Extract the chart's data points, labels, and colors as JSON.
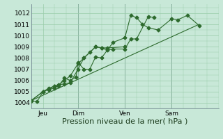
{
  "background_color": "#c8e8d8",
  "grid_color": "#99ccaa",
  "line_color": "#2d6a2d",
  "marker": "D",
  "marker_size": 2.5,
  "ylabel_ticks": [
    1004,
    1005,
    1006,
    1007,
    1008,
    1009,
    1010,
    1011,
    1012
  ],
  "xlim": [
    0,
    96
  ],
  "ylim": [
    1003.5,
    1012.8
  ],
  "xlabel": "Pression niveau de la mer( hPa )",
  "xlabel_fontsize": 8,
  "tick_fontsize": 6.5,
  "vline_color": "#667788",
  "vline_positions": [
    24,
    48,
    72
  ],
  "xtick_positions": [
    6,
    24,
    48,
    72
  ],
  "xtick_labels": [
    "Jeu",
    "Dim",
    "Ven",
    "Sam"
  ],
  "series": [
    {
      "x": [
        0,
        3,
        6,
        9,
        12,
        14,
        17,
        20,
        23,
        24,
        27,
        30,
        33,
        36,
        42,
        48,
        51,
        54,
        57,
        60,
        65,
        72,
        75,
        80,
        86
      ],
      "y": [
        1004.2,
        1004.1,
        1005.0,
        1005.2,
        1005.5,
        1005.5,
        1006.2,
        1006.0,
        1006.3,
        1007.6,
        1007.0,
        1007.0,
        1008.1,
        1008.0,
        1009.4,
        1009.8,
        1011.8,
        1011.6,
        1011.0,
        1010.7,
        1010.5,
        1011.5,
        1011.4,
        1011.8,
        1010.9
      ],
      "has_markers": true
    },
    {
      "x": [
        0,
        6,
        9,
        12,
        14,
        17,
        20,
        24,
        27,
        33,
        36,
        39,
        42,
        48,
        51,
        54,
        60,
        63
      ],
      "y": [
        1004.2,
        1005.0,
        1005.3,
        1005.5,
        1005.6,
        1006.0,
        1006.4,
        1007.5,
        1008.0,
        1009.0,
        1008.9,
        1008.7,
        1008.8,
        1008.8,
        1009.7,
        1009.7,
        1011.7,
        1011.6
      ],
      "has_markers": true
    },
    {
      "x": [
        0,
        6,
        9,
        12,
        14,
        17,
        20,
        24,
        27,
        30,
        33,
        36,
        39,
        48
      ],
      "y": [
        1004.2,
        1005.0,
        1005.2,
        1005.3,
        1005.6,
        1005.7,
        1005.8,
        1007.0,
        1008.0,
        1008.5,
        1009.0,
        1008.9,
        1008.9,
        1009.0
      ],
      "has_markers": true
    },
    {
      "x": [
        0,
        86
      ],
      "y": [
        1004.2,
        1011.0
      ],
      "has_markers": false
    }
  ]
}
